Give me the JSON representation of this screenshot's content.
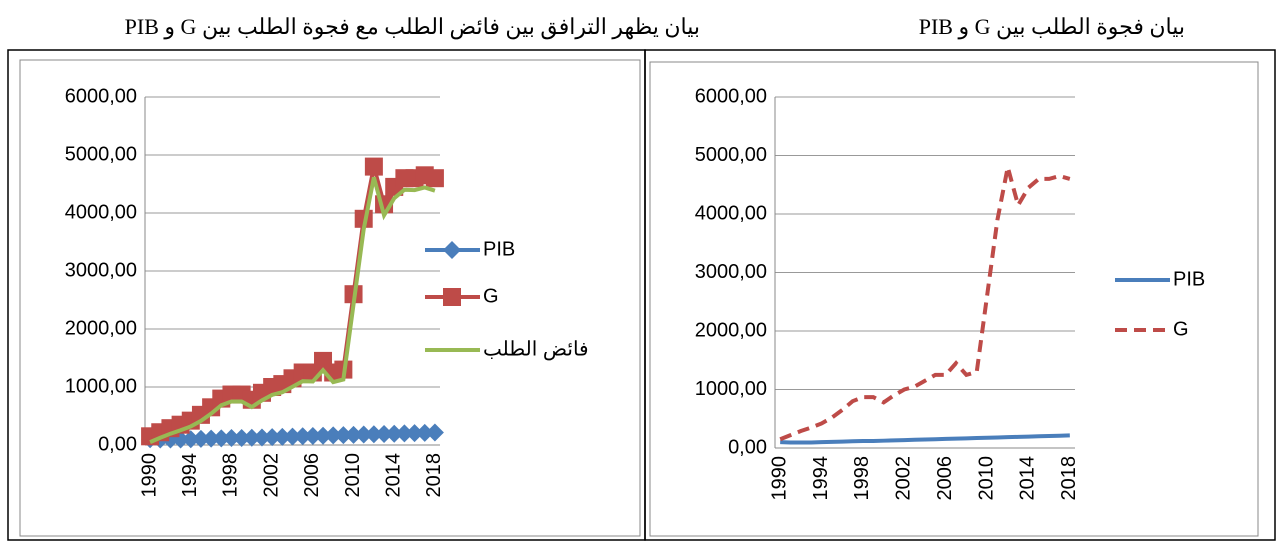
{
  "chart_data": [
    {
      "type": "line",
      "title": "بيان يظهر الترافق بين فائض الطلب مع فجوة الطلب بين G و PIB",
      "categories": [
        "1990",
        null,
        null,
        null,
        "1994",
        null,
        null,
        null,
        "1998",
        null,
        null,
        null,
        "2002",
        null,
        null,
        null,
        "2006",
        null,
        null,
        null,
        "2010",
        null,
        null,
        null,
        "2014",
        null,
        null,
        null,
        "2018"
      ],
      "series": [
        {
          "name": "PIB",
          "color": "#4a7ebb",
          "marker": "diamond",
          "dash": false,
          "values": [
            100,
            95,
            95,
            95,
            100,
            105,
            110,
            115,
            120,
            120,
            125,
            130,
            135,
            140,
            145,
            150,
            155,
            160,
            165,
            170,
            175,
            180,
            185,
            190,
            195,
            200,
            205,
            210,
            215
          ]
        },
        {
          "name": "G",
          "color": "#be4b48",
          "marker": "square",
          "dash": false,
          "values": [
            150,
            220,
            290,
            350,
            420,
            520,
            650,
            800,
            870,
            870,
            780,
            900,
            1000,
            1050,
            1150,
            1250,
            1250,
            1450,
            1250,
            1300,
            2600,
            3900,
            4800,
            4150,
            4450,
            4600,
            4600,
            4650,
            4600
          ]
        },
        {
          "name": "فائض الطلب",
          "color": "#98b954",
          "marker": null,
          "dash": false,
          "values": [
            50,
            125,
            195,
            255,
            320,
            415,
            540,
            685,
            750,
            750,
            655,
            770,
            865,
            910,
            1005,
            1100,
            1095,
            1290,
            1085,
            1130,
            2425,
            3720,
            4615,
            3960,
            4255,
            4400,
            4395,
            4440,
            4385
          ]
        }
      ],
      "ylim": [
        0,
        6000
      ],
      "yticks": [
        {
          "value": 0,
          "label": "0,00"
        },
        {
          "value": 1000,
          "label": "1000,00"
        },
        {
          "value": 2000,
          "label": "2000,00"
        },
        {
          "value": 3000,
          "label": "3000,00"
        },
        {
          "value": 4000,
          "label": "4000,00"
        },
        {
          "value": 5000,
          "label": "5000,00"
        },
        {
          "value": 6000,
          "label": "6000,00"
        }
      ],
      "grid": true,
      "legend": "right"
    },
    {
      "type": "line",
      "title": "بيان فجوة الطلب بين  G و PIB",
      "categories": [
        "1990",
        null,
        null,
        null,
        "1994",
        null,
        null,
        null,
        "1998",
        null,
        null,
        null,
        "2002",
        null,
        null,
        null,
        "2006",
        null,
        null,
        null,
        "2010",
        null,
        null,
        null,
        "2014",
        null,
        null,
        null,
        "2018"
      ],
      "series": [
        {
          "name": "PIB",
          "color": "#4a7ebb",
          "marker": null,
          "dash": false,
          "values": [
            100,
            95,
            95,
            95,
            100,
            105,
            110,
            115,
            120,
            120,
            125,
            130,
            135,
            140,
            145,
            150,
            155,
            160,
            165,
            170,
            175,
            180,
            185,
            190,
            195,
            200,
            205,
            210,
            215
          ]
        },
        {
          "name": "G",
          "color": "#be4b48",
          "marker": null,
          "dash": true,
          "values": [
            150,
            220,
            290,
            350,
            420,
            520,
            650,
            800,
            870,
            870,
            780,
            900,
            1000,
            1050,
            1150,
            1250,
            1250,
            1450,
            1250,
            1300,
            2600,
            3900,
            4800,
            4150,
            4450,
            4600,
            4600,
            4650,
            4600
          ]
        }
      ],
      "ylim": [
        0,
        6000
      ],
      "yticks": [
        {
          "value": 0,
          "label": "0,00"
        },
        {
          "value": 1000,
          "label": "1000,00"
        },
        {
          "value": 2000,
          "label": "2000,00"
        },
        {
          "value": 3000,
          "label": "3000,00"
        },
        {
          "value": 4000,
          "label": "4000,00"
        },
        {
          "value": 5000,
          "label": "5000,00"
        },
        {
          "value": 6000,
          "label": "6000,00"
        }
      ],
      "grid": true,
      "legend": "right"
    }
  ]
}
